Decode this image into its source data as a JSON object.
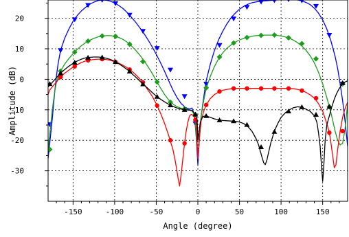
{
  "chart_data": {
    "type": "line",
    "title": "",
    "xlabel": "Angle (degree)",
    "ylabel": "Amplitude (dB)",
    "xlim": [
      -180,
      180
    ],
    "ylim": [
      -40,
      26
    ],
    "xticks": [
      -150,
      -100,
      -50,
      0,
      50,
      100,
      150
    ],
    "yticks": [
      -30,
      -20,
      -10,
      0,
      10,
      20
    ],
    "grid": true,
    "series": [
      {
        "color": "#0000ff",
        "marker": "triangle-down",
        "x": [
          -180,
          -178,
          -175,
          -172,
          -170,
          -168,
          -165,
          -160,
          -155,
          -150,
          -145,
          -140,
          -135,
          -130,
          -125,
          -120,
          -115,
          -110,
          -105,
          -100,
          -95,
          -90,
          -85,
          -80,
          -75,
          -70,
          -65,
          -60,
          -55,
          -50,
          -45,
          -40,
          -35,
          -30,
          -25,
          -20,
          -15,
          -10,
          -7,
          -4,
          -2,
          0,
          2,
          4,
          7,
          10,
          15,
          20,
          25,
          30,
          35,
          40,
          45,
          50,
          55,
          60,
          65,
          70,
          75,
          80,
          85,
          90,
          95,
          100,
          105,
          110,
          115,
          120,
          125,
          130,
          135,
          140,
          145,
          150,
          155,
          160,
          165,
          168,
          171,
          174,
          177,
          180
        ],
        "y": [
          -26,
          -21,
          -13,
          -4,
          1,
          5,
          9.5,
          13.5,
          16.5,
          19,
          20.9,
          22.4,
          23.6,
          24.6,
          25.3,
          25.8,
          26,
          25.9,
          25.6,
          25,
          24.2,
          23.2,
          21.9,
          20.4,
          18.8,
          17,
          15.1,
          13,
          10.7,
          8.2,
          5.5,
          2.6,
          -0.5,
          -3.5,
          -6,
          -8,
          -9.2,
          -9.8,
          -9.4,
          -12,
          -19,
          -28,
          -19,
          -12,
          -6,
          -0.5,
          5,
          9.5,
          13,
          15.8,
          18.2,
          20.2,
          21.7,
          23,
          23.9,
          24.6,
          25.1,
          25.4,
          25.6,
          25.7,
          25.8,
          25.9,
          26,
          26.1,
          26.3,
          26.3,
          26.2,
          26,
          25.7,
          25.2,
          24.5,
          23.3,
          21.7,
          19.5,
          16.5,
          12.5,
          7.5,
          3.5,
          -1.5,
          -7,
          -14,
          -22
        ],
        "markers_x": [
          -178,
          -165,
          -148,
          -132,
          -115,
          -99,
          -82,
          -66,
          -49,
          -33,
          -16,
          -3,
          10,
          26,
          43,
          59,
          76,
          92,
          109,
          125,
          142,
          158,
          174
        ],
        "markers_y": [
          -14.8,
          9.5,
          19.6,
          24.3,
          26,
          24.9,
          21.1,
          15.8,
          10.2,
          3.1,
          -5.6,
          -14.5,
          -1.5,
          11.2,
          19.9,
          23.7,
          25.4,
          25.9,
          26.2,
          25.8,
          24,
          14.5,
          -1.5
        ]
      },
      {
        "color": "#1e9c1e",
        "marker": "diamond",
        "x": [
          -180,
          -178,
          -175,
          -172,
          -170,
          -167,
          -164,
          -160,
          -155,
          -150,
          -145,
          -140,
          -135,
          -130,
          -125,
          -120,
          -115,
          -110,
          -105,
          -100,
          -95,
          -90,
          -85,
          -80,
          -75,
          -70,
          -65,
          -60,
          -55,
          -50,
          -45,
          -40,
          -35,
          -30,
          -25,
          -20,
          -15,
          -10,
          -7,
          -4,
          -2,
          0,
          2,
          4,
          7,
          10,
          15,
          20,
          25,
          30,
          35,
          40,
          45,
          50,
          55,
          60,
          65,
          70,
          75,
          80,
          85,
          90,
          95,
          100,
          105,
          110,
          115,
          120,
          125,
          130,
          135,
          140,
          145,
          150,
          155,
          160,
          165,
          168,
          171,
          174,
          177,
          180
        ],
        "y": [
          -23,
          -18,
          -10,
          -4,
          -1,
          1.5,
          3.2,
          5,
          6.8,
          8.4,
          9.8,
          11,
          12,
          12.8,
          13.4,
          13.9,
          14.2,
          14.3,
          14.3,
          14.1,
          13.7,
          13.1,
          12.2,
          11,
          9.6,
          8,
          6.2,
          4.2,
          2,
          -0.4,
          -2.8,
          -5,
          -6.8,
          -8.1,
          -9,
          -9.5,
          -9.8,
          -10,
          -10.2,
          -12,
          -18,
          -26,
          -18,
          -12,
          -7,
          -3,
          1,
          4.2,
          6.8,
          8.7,
          10.2,
          11.3,
          12.2,
          12.9,
          13.4,
          13.8,
          14.1,
          14.3,
          14.4,
          14.5,
          14.5,
          14.5,
          14.4,
          14.2,
          13.9,
          13.5,
          12.8,
          12,
          10.9,
          9.5,
          7.7,
          5.4,
          2.3,
          -1.5,
          -6,
          -11,
          -17,
          -20,
          -21.5,
          -21,
          -16,
          -8
        ],
        "markers_x": [
          -178,
          -165,
          -148,
          -132,
          -115,
          -99,
          -82,
          -66,
          -49,
          -33,
          -16,
          -3,
          10,
          26,
          43,
          59,
          76,
          92,
          109,
          125,
          142,
          158,
          174
        ],
        "markers_y": [
          -23,
          2.7,
          8.9,
          12.5,
          14.2,
          14.1,
          11.5,
          5.8,
          -0.9,
          -7.5,
          -9.7,
          -11.6,
          -2.8,
          7.3,
          11.9,
          13.7,
          14.4,
          14.5,
          13.6,
          11.7,
          6.7,
          -9,
          -1.5
        ]
      },
      {
        "color": "#ff0000",
        "marker": "circle",
        "x": [
          -180,
          -178,
          -175,
          -172,
          -170,
          -167,
          -164,
          -160,
          -155,
          -150,
          -145,
          -140,
          -135,
          -130,
          -125,
          -120,
          -115,
          -110,
          -105,
          -100,
          -95,
          -90,
          -85,
          -80,
          -75,
          -70,
          -65,
          -60,
          -55,
          -50,
          -45,
          -40,
          -35,
          -30,
          -27,
          -24,
          -22,
          -20,
          -18,
          -16,
          -14,
          -12,
          -10,
          -8,
          -6,
          -4,
          -2,
          0,
          2,
          4,
          7,
          10,
          15,
          20,
          25,
          30,
          35,
          40,
          45,
          50,
          55,
          60,
          65,
          70,
          75,
          80,
          85,
          90,
          95,
          100,
          105,
          110,
          115,
          120,
          125,
          130,
          135,
          140,
          145,
          150,
          155,
          158,
          160,
          162,
          164,
          166,
          168,
          171,
          174,
          177,
          180
        ],
        "y": [
          -5,
          -3.5,
          -2.5,
          -1.5,
          -1,
          0.2,
          1,
          2,
          3,
          4,
          4.8,
          5.5,
          6,
          6.3,
          6.5,
          6.6,
          6.6,
          6.5,
          6.2,
          5.8,
          5.3,
          4.6,
          3.8,
          2.8,
          1.6,
          0.2,
          -1.5,
          -3.5,
          -5.5,
          -8,
          -11,
          -14.5,
          -18.5,
          -23,
          -27,
          -32,
          -35,
          -31,
          -26,
          -21,
          -17,
          -14,
          -12,
          -11.5,
          -11.8,
          -12.5,
          -14,
          -26,
          -19,
          -13.5,
          -10.5,
          -8.4,
          -6.3,
          -5,
          -4.2,
          -3.6,
          -3.3,
          -3.1,
          -3,
          -3,
          -3,
          -3,
          -3,
          -3,
          -3,
          -3,
          -3,
          -3,
          -3,
          -3,
          -3,
          -3,
          -3.1,
          -3.3,
          -3.7,
          -4.3,
          -5.1,
          -6.2,
          -8,
          -10.5,
          -14.5,
          -17.5,
          -21,
          -25,
          -29,
          -28,
          -23,
          -17,
          -12.5,
          -9.5,
          -7.5
        ],
        "markers_x": [
          -165,
          -148,
          -132,
          -115,
          -99,
          -82,
          -66,
          -49,
          -33,
          -16,
          -3,
          10,
          26,
          43,
          59,
          76,
          92,
          109,
          125,
          142,
          158,
          174
        ],
        "markers_y": [
          0.7,
          4.2,
          6.2,
          6.6,
          5.7,
          3.2,
          -1,
          -8.6,
          -20,
          -21,
          -13.3,
          -8.4,
          -4,
          -3,
          -3,
          -3,
          -3,
          -3,
          -3.7,
          -6.2,
          -17.5,
          -17
        ]
      },
      {
        "color": "#000000",
        "marker": "triangle-up",
        "x": [
          -180,
          -175,
          -170,
          -165,
          -160,
          -155,
          -150,
          -145,
          -140,
          -135,
          -130,
          -125,
          -120,
          -115,
          -110,
          -105,
          -100,
          -95,
          -90,
          -85,
          -80,
          -75,
          -70,
          -65,
          -60,
          -55,
          -50,
          -45,
          -40,
          -35,
          -30,
          -25,
          -20,
          -15,
          -10,
          -6,
          -3,
          -1,
          0,
          3,
          6,
          10,
          15,
          20,
          25,
          30,
          35,
          40,
          45,
          50,
          55,
          60,
          65,
          70,
          73,
          75,
          77,
          79,
          81,
          83,
          85,
          88,
          92,
          96,
          100,
          105,
          110,
          115,
          120,
          125,
          130,
          135,
          140,
          143,
          145,
          147,
          148,
          149,
          150,
          151,
          152,
          153,
          155,
          158,
          161,
          164,
          167,
          170,
          173,
          176,
          180
        ],
        "y": [
          -2.5,
          -1,
          0.5,
          2,
          3.2,
          4.3,
          5.2,
          6,
          6.6,
          7,
          7.2,
          7.3,
          7.3,
          7.2,
          6.9,
          6.5,
          5.9,
          5.1,
          4.2,
          3.2,
          2,
          0.8,
          -0.5,
          -1.8,
          -3,
          -4.3,
          -5.5,
          -6.5,
          -7.4,
          -8.2,
          -8.9,
          -9.4,
          -9.8,
          -10,
          -10.1,
          -10.5,
          -11.5,
          -13,
          -20,
          -14,
          -12.2,
          -12,
          -12.5,
          -13,
          -13.3,
          -13.5,
          -13.6,
          -13.7,
          -13.8,
          -14,
          -14.5,
          -15.5,
          -17,
          -19.5,
          -21.5,
          -23.5,
          -25.5,
          -27.3,
          -28,
          -26.5,
          -24,
          -20.5,
          -17,
          -14.5,
          -12.5,
          -11,
          -10,
          -9.3,
          -9,
          -9.2,
          -9.8,
          -10.5,
          -12,
          -14,
          -17.5,
          -22,
          -26,
          -30,
          -33.5,
          -30,
          -25,
          -20,
          -15,
          -12,
          -9,
          -6.5,
          -4.5,
          -3,
          -1.8,
          -1,
          -0.5
        ],
        "markers_x": [
          -178,
          -165,
          -148,
          -132,
          -115,
          -99,
          -82,
          -66,
          -49,
          -33,
          -16,
          -3,
          10,
          26,
          43,
          59,
          76,
          92,
          109,
          125,
          142,
          158,
          174
        ],
        "markers_y": [
          -1.5,
          2,
          5.5,
          7.1,
          7.2,
          5.7,
          2.6,
          -1.6,
          -5.7,
          -8.5,
          -10,
          -11.5,
          -12,
          -13.4,
          -13.7,
          -14.9,
          -22.2,
          -17.2,
          -10.5,
          -9.1,
          -11.6,
          -9,
          -1.2
        ]
      }
    ]
  }
}
